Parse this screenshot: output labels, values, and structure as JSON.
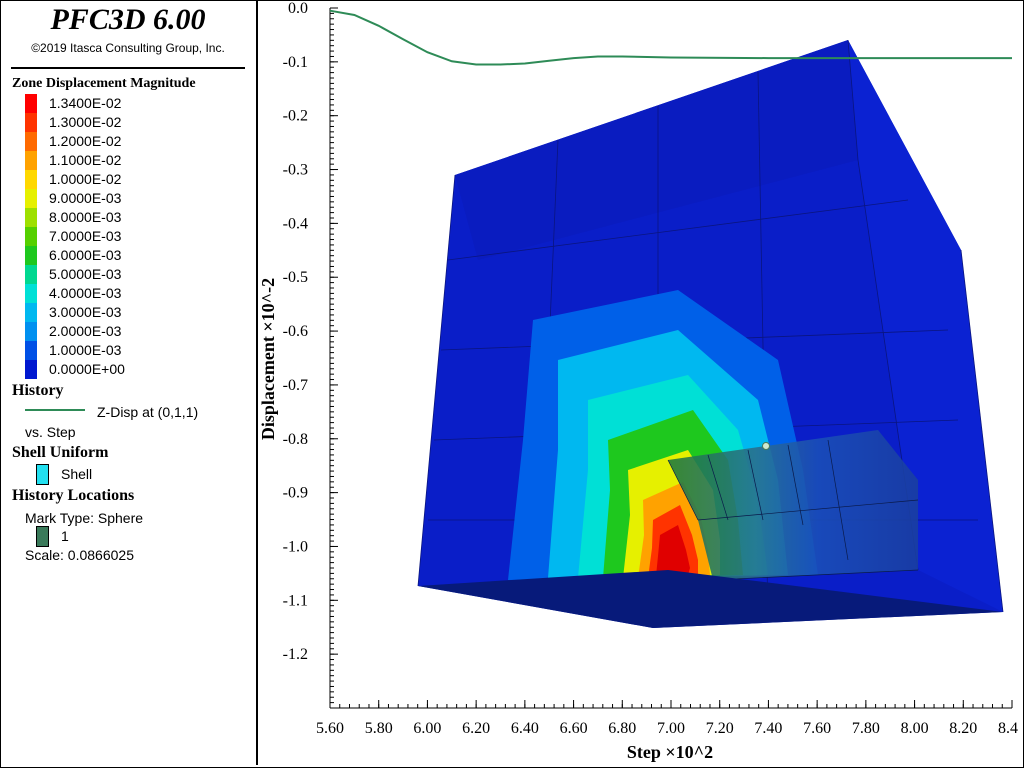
{
  "app": {
    "title": "PFC3D 6.00",
    "copyright": "©2019 Itasca Consulting Group, Inc."
  },
  "legend": {
    "zone_title": "Zone Displacement Magnitude",
    "scale": [
      {
        "label": "1.3400E-02",
        "color": "#ff0000"
      },
      {
        "label": "1.3000E-02",
        "color": "#ff3300"
      },
      {
        "label": "1.2000E-02",
        "color": "#ff6a00"
      },
      {
        "label": "1.1000E-02",
        "color": "#ffa200"
      },
      {
        "label": "1.0000E-02",
        "color": "#ffd800"
      },
      {
        "label": "9.0000E-03",
        "color": "#e6f000"
      },
      {
        "label": "8.0000E-03",
        "color": "#9ee000"
      },
      {
        "label": "7.0000E-03",
        "color": "#55d000"
      },
      {
        "label": "6.0000E-03",
        "color": "#1ec81e"
      },
      {
        "label": "5.0000E-03",
        "color": "#00d890"
      },
      {
        "label": "4.0000E-03",
        "color": "#00e0d6"
      },
      {
        "label": "3.0000E-03",
        "color": "#00b8f0"
      },
      {
        "label": "2.0000E-03",
        "color": "#0090f0"
      },
      {
        "label": "1.0000E-03",
        "color": "#0050e6"
      },
      {
        "label": "0.0000E+00",
        "color": "#0018d0"
      }
    ],
    "history_title": "History",
    "history_series": "Z-Disp at (0,1,1)",
    "history_vs": "vs. Step",
    "history_color": "#2e8b57",
    "shell_title": "Shell Uniform",
    "shell_label": "Shell",
    "shell_color": "#22e0f0",
    "locations_title": "History Locations",
    "mark_type": "Mark Type: Sphere",
    "mark_label": "1",
    "mark_color": "#3a7a5a",
    "scale_text": "Scale: 0.0866025"
  },
  "chart_data": {
    "type": "line",
    "xlabel": "Step ×10^2",
    "ylabel": "Displacement ×10^-2",
    "xlim": [
      5.6,
      8.4
    ],
    "ylim": [
      -1.3,
      0.0
    ],
    "x_ticks": [
      "5.60",
      "5.80",
      "6.00",
      "6.20",
      "6.40",
      "6.60",
      "6.80",
      "7.00",
      "7.20",
      "7.40",
      "7.60",
      "7.80",
      "8.00",
      "8.20",
      "8.4"
    ],
    "y_ticks": [
      "0.0",
      "-0.1",
      "-0.2",
      "-0.3",
      "-0.4",
      "-0.5",
      "-0.6",
      "-0.7",
      "-0.8",
      "-0.9",
      "-1.0",
      "-1.1",
      "-1.2"
    ],
    "series": [
      {
        "name": "Z-Disp at (0,1,1)",
        "color": "#2e8b57",
        "x": [
          5.6,
          5.7,
          5.8,
          5.9,
          6.0,
          6.1,
          6.2,
          6.3,
          6.4,
          6.5,
          6.6,
          6.7,
          6.8,
          7.0,
          7.4,
          7.8,
          8.4
        ],
        "y": [
          -0.005,
          -0.013,
          -0.033,
          -0.058,
          -0.082,
          -0.099,
          -0.105,
          -0.105,
          -0.103,
          -0.098,
          -0.093,
          -0.09,
          -0.09,
          -0.092,
          -0.093,
          -0.093,
          -0.093
        ]
      }
    ],
    "grid": false
  }
}
